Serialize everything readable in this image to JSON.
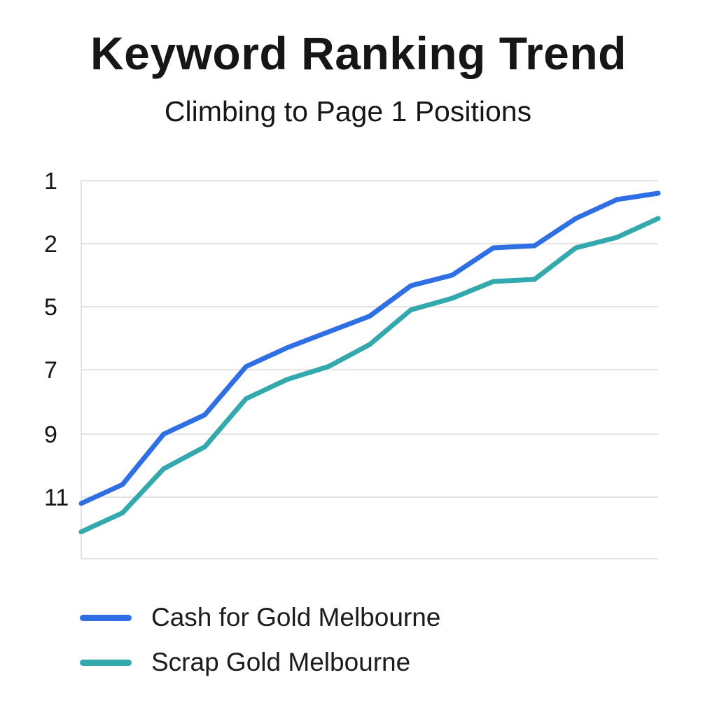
{
  "title": "Keyword Ranking Trend",
  "subtitle": "Climbing to Page 1 Positions",
  "chart_data": {
    "type": "line",
    "title": "Keyword Ranking Trend",
    "subtitle": "Climbing to Page 1 Positions",
    "xlabel": "",
    "ylabel": "",
    "y_ticks": [
      "1",
      "2",
      "5",
      "7",
      "9",
      "11"
    ],
    "y_scale": "rank position, inverted (1 at top)",
    "grid": true,
    "legend_position": "bottom-left",
    "x": [
      1,
      2,
      3,
      4,
      5,
      6,
      7,
      8,
      9,
      10,
      11,
      12,
      13,
      14,
      15
    ],
    "series": [
      {
        "name": "Cash for Gold Melbourne",
        "color": "#2f6fe4",
        "values": [
          11.2,
          10.6,
          9.0,
          8.4,
          6.9,
          6.3,
          5.8,
          5.3,
          4.0,
          3.5,
          2.2,
          2.1,
          1.6,
          1.3,
          1.2
        ]
      },
      {
        "name": "Scrap Gold Melbourne",
        "color": "#33a9ad",
        "values": [
          12.1,
          11.5,
          10.1,
          9.4,
          7.9,
          7.3,
          6.9,
          6.2,
          5.1,
          4.6,
          3.8,
          3.7,
          2.2,
          1.9,
          1.6
        ]
      }
    ]
  }
}
